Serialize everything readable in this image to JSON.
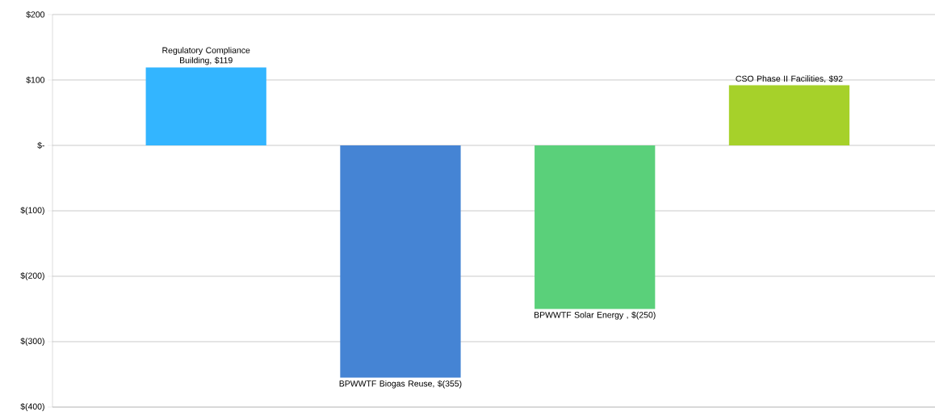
{
  "chart_data": {
    "type": "bar",
    "categories": [
      null,
      null,
      null,
      null
    ],
    "values": [
      119,
      -355,
      -250,
      92
    ],
    "colors": [
      "#33b5ff",
      "#4584d4",
      "#5ad07a",
      "#a6d12a"
    ],
    "value_labels": [
      "Regulatory Compliance Building,  $119",
      "BPWWTF Biogas Reuse,  $(355)",
      "BPWWTF Solar Energy ,  $(250)",
      "CSO Phase II Facilities,  $92"
    ],
    "ylim": [
      -400,
      200
    ],
    "yticks": [
      {
        "value": -400,
        "label": "$(400)"
      },
      {
        "value": -300,
        "label": "$(300)"
      },
      {
        "value": -200,
        "label": "$(200)"
      },
      {
        "value": -100,
        "label": "$(100)"
      },
      {
        "value": 0,
        "label": "$-"
      },
      {
        "value": 100,
        "label": "$100"
      },
      {
        "value": 200,
        "label": "$200"
      }
    ],
    "grid": "y"
  }
}
